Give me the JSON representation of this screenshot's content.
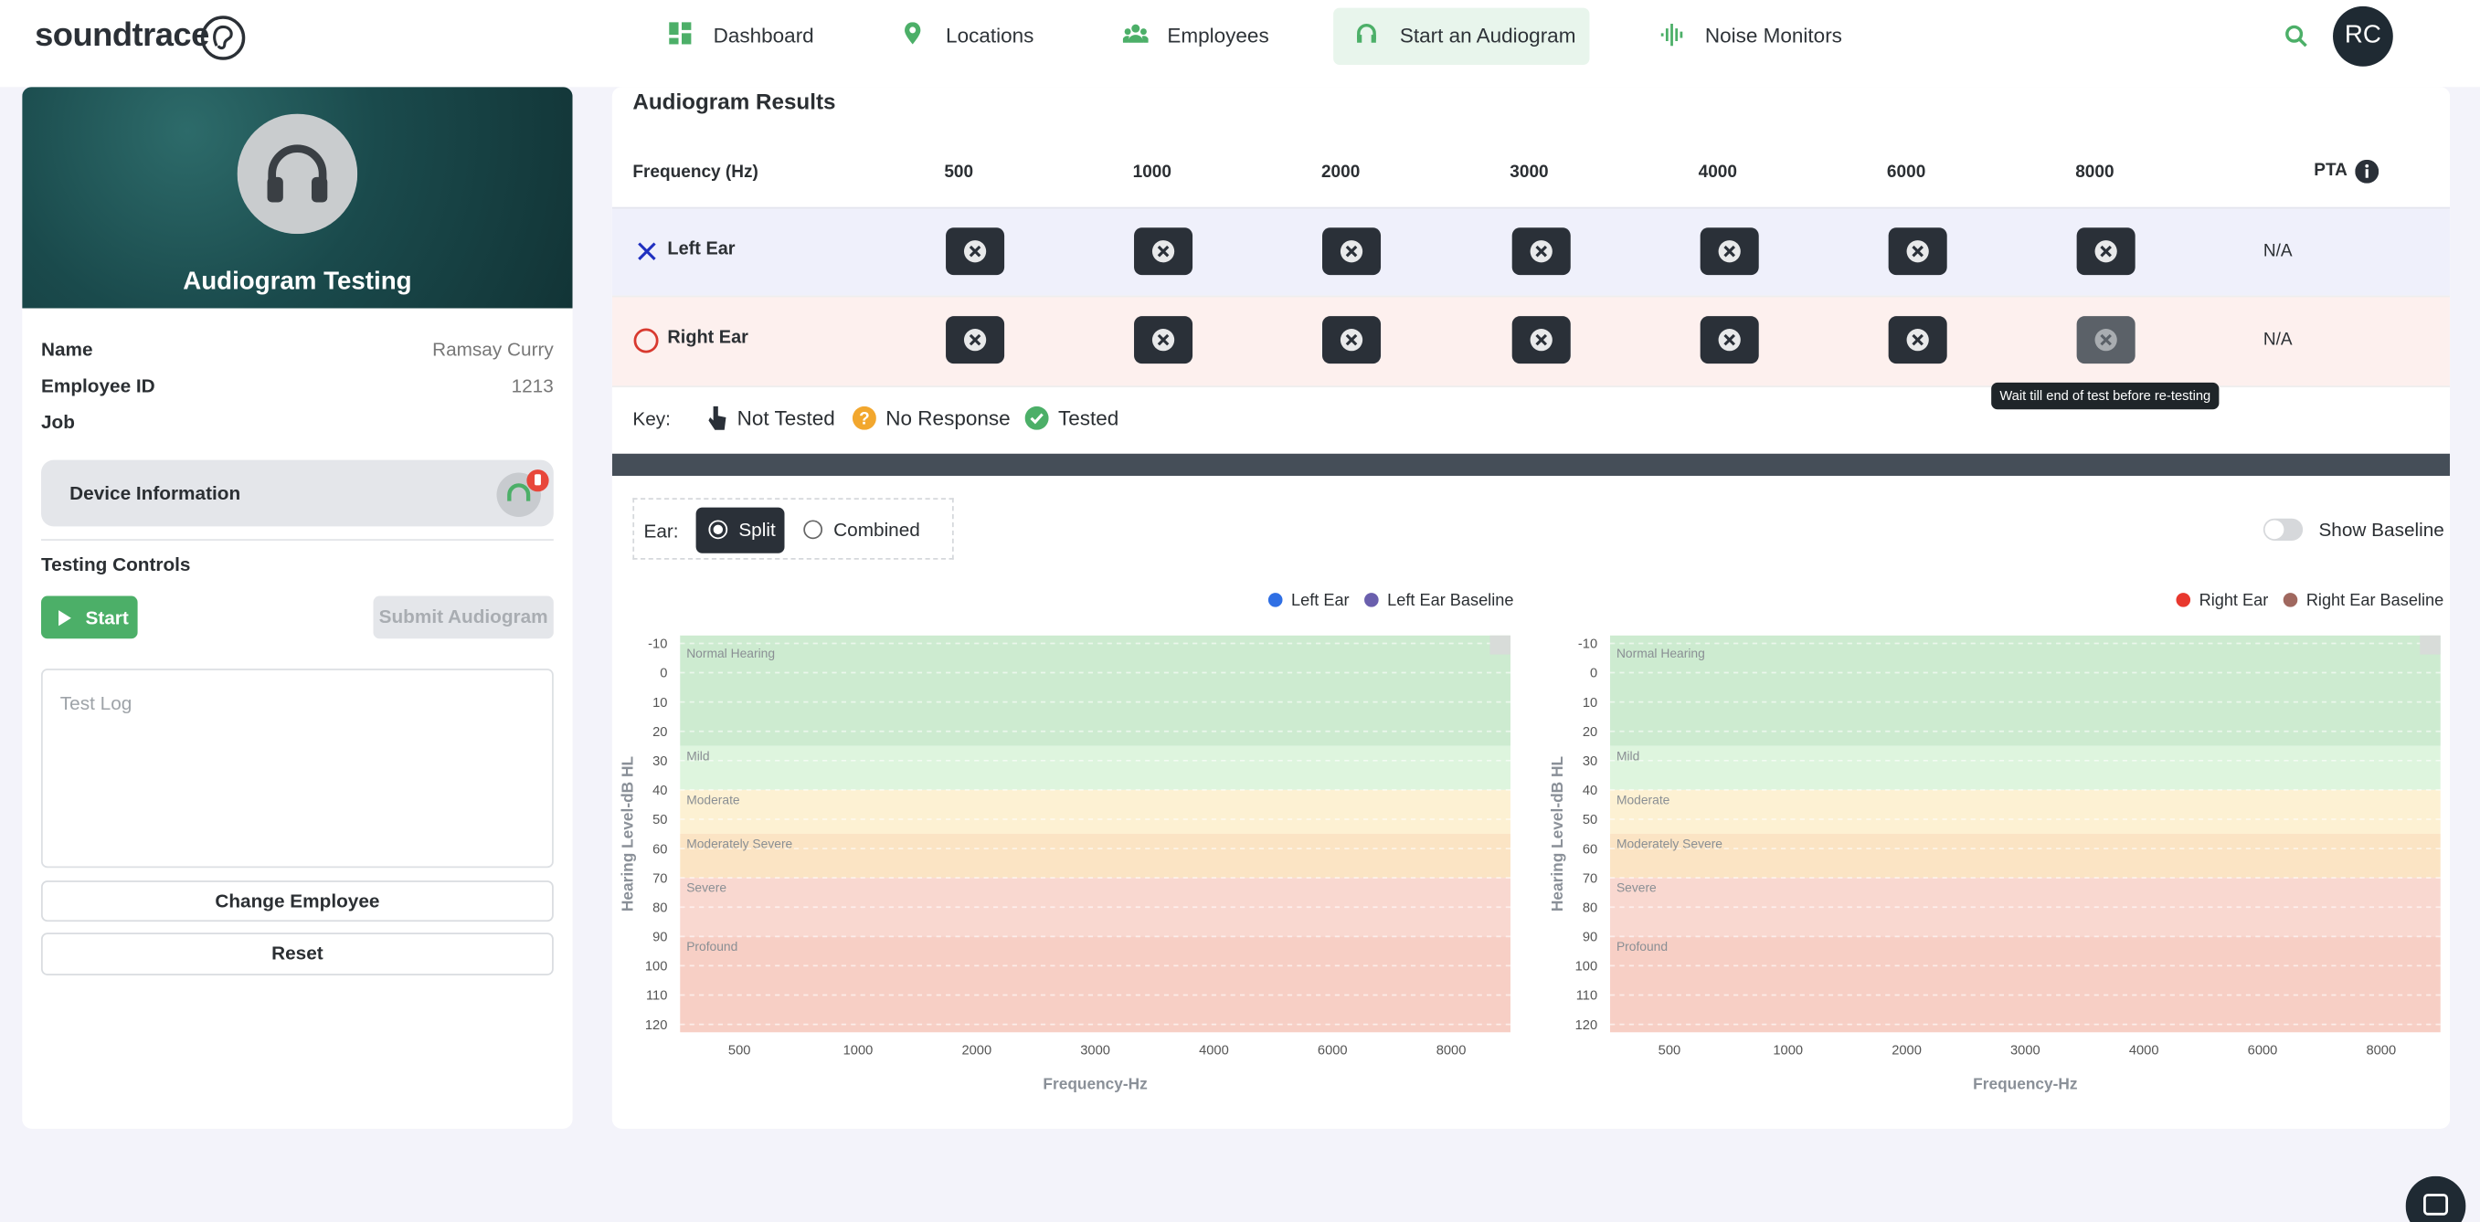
{
  "brand": "soundtrace",
  "nav": [
    "Dashboard",
    "Locations",
    "Employees",
    "Start an Audiogram",
    "Noise Monitors"
  ],
  "user_initials": "RC",
  "profile": {
    "title": "Audiogram Testing",
    "fields": [
      {
        "label": "Name",
        "value": "Ramsay Curry"
      },
      {
        "label": "Employee ID",
        "value": "1213"
      },
      {
        "label": "Job"
      }
    ],
    "device_info": "Device Information",
    "testing_controls": "Testing Controls",
    "start": "Start",
    "submit": "Submit Audiogram",
    "test_log": "Test Log",
    "change_employee": "Change Employee",
    "reset": "Reset"
  },
  "results": {
    "title": "Audiogram Results",
    "frequency_header": "Frequency (Hz)",
    "frequencies": [
      500,
      1000,
      2000,
      3000,
      4000,
      6000,
      8000
    ],
    "pta_header": "PTA",
    "rows": [
      {
        "ear": "Left Ear",
        "pta": "N/A"
      },
      {
        "ear": "Right Ear",
        "pta": "N/A"
      }
    ],
    "tooltip": "Wait till end of test before re-testing"
  },
  "key": {
    "label": "Key:",
    "items": [
      "Not Tested",
      "No Response",
      "Tested"
    ]
  },
  "ear_toggle": {
    "label": "Ear:",
    "options": [
      "Split",
      "Combined"
    ],
    "selected": 0
  },
  "show_baseline": "Show Baseline",
  "charts": [
    {
      "series": [
        {
          "name": "Left Ear",
          "color": "#2f6fe4"
        },
        {
          "name": "Left Ear Baseline",
          "color": "#6a5fad"
        }
      ],
      "y_label": "Hearing Level-dB HL",
      "x_label": "Frequency-Hz",
      "categories": [
        500,
        1000,
        2000,
        3000,
        4000,
        6000,
        8000
      ],
      "ylim": [
        -10,
        120
      ],
      "yticks": [
        -10,
        0,
        10,
        20,
        30,
        40,
        50,
        60,
        70,
        80,
        90,
        100,
        110,
        120
      ],
      "bands": [
        {
          "label": "Normal Hearing",
          "from": -10,
          "to": 25,
          "color": "#cdebd0"
        },
        {
          "label": "Mild",
          "from": 25,
          "to": 40,
          "color": "#def5de"
        },
        {
          "label": "Moderate",
          "from": 40,
          "to": 55,
          "color": "#fdf1d3"
        },
        {
          "label": "Moderately Severe",
          "from": 55,
          "to": 70,
          "color": "#fbe4c4"
        },
        {
          "label": "Severe",
          "from": 70,
          "to": 90,
          "color": "#f9d8d0"
        },
        {
          "label": "Profound",
          "from": 90,
          "to": 120,
          "color": "#f7cfc5"
        }
      ]
    },
    {
      "series": [
        {
          "name": "Right Ear",
          "color": "#e8382e"
        },
        {
          "name": "Right Ear Baseline",
          "color": "#a0685f"
        }
      ],
      "y_label": "Hearing Level-dB HL",
      "x_label": "Frequency-Hz",
      "categories": [
        500,
        1000,
        2000,
        3000,
        4000,
        6000,
        8000
      ],
      "ylim": [
        -10,
        120
      ],
      "yticks": [
        -10,
        0,
        10,
        20,
        30,
        40,
        50,
        60,
        70,
        80,
        90,
        100,
        110,
        120
      ],
      "bands": [
        {
          "label": "Normal Hearing",
          "from": -10,
          "to": 25,
          "color": "#cdebd0"
        },
        {
          "label": "Mild",
          "from": 25,
          "to": 40,
          "color": "#def5de"
        },
        {
          "label": "Moderate",
          "from": 40,
          "to": 55,
          "color": "#fdf1d3"
        },
        {
          "label": "Moderately Severe",
          "from": 55,
          "to": 70,
          "color": "#fbe4c4"
        },
        {
          "label": "Severe",
          "from": 70,
          "to": 90,
          "color": "#f9d8d0"
        },
        {
          "label": "Profound",
          "from": 90,
          "to": 120,
          "color": "#f7cfc5"
        }
      ]
    }
  ]
}
